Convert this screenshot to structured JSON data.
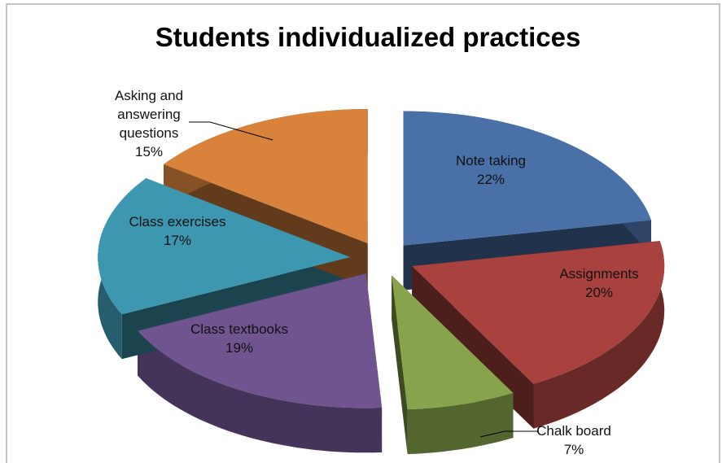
{
  "chart_data": {
    "type": "pie3d",
    "title": "Students individualized practices",
    "categories": [
      "Note taking",
      "Assignments",
      "Chalk board",
      "Class textbooks",
      "Class exercises",
      "Asking and answering questions"
    ],
    "values": [
      22,
      20,
      7,
      19,
      17,
      15
    ],
    "value_labels": [
      "22%",
      "20%",
      "7%",
      "19%",
      "17%",
      "15%"
    ],
    "colors": [
      "#4a70a8",
      "#a9423f",
      "#87a44c",
      "#6f5490",
      "#3e97b0",
      "#d8823c"
    ]
  }
}
